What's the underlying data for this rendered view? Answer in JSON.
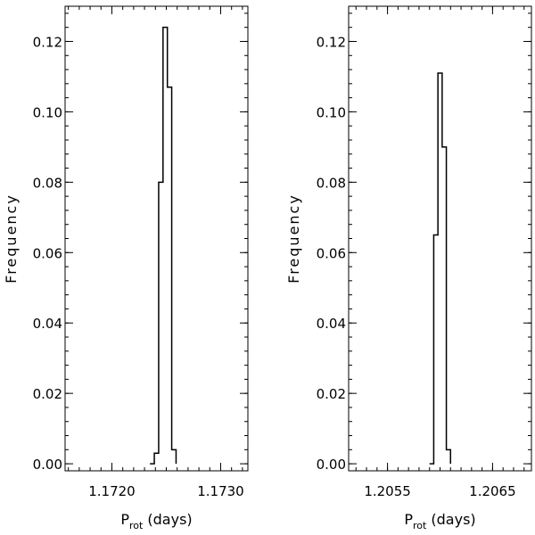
{
  "chart_data": [
    {
      "type": "line",
      "ylabel": "Frequency",
      "xlabel_main": "P",
      "xlabel_sub": "rot",
      "xlabel_rest": " (days)",
      "xlim": [
        1.17157,
        1.17325
      ],
      "ylim": [
        -0.002,
        0.13
      ],
      "xticks": [
        1.172,
        1.173
      ],
      "xtick_labels": [
        "1.1720",
        "1.1730"
      ],
      "yticks": [
        0.0,
        0.02,
        0.04,
        0.06,
        0.08,
        0.1,
        0.12
      ],
      "ytick_labels": [
        "0.00",
        "0.02",
        "0.04",
        "0.06",
        "0.08",
        "0.10",
        "0.12"
      ],
      "grid": false,
      "series": [
        {
          "x": [
            1.17237,
            1.17241,
            1.17245,
            1.17249,
            1.17253,
            1.17257
          ],
          "values": [
            0.0,
            0.003,
            0.08,
            0.124,
            0.107,
            0.004
          ]
        }
      ]
    },
    {
      "type": "line",
      "ylabel": "Frequency",
      "xlabel_main": "P",
      "xlabel_sub": "rot",
      "xlabel_rest": " (days)",
      "xlim": [
        1.20513,
        1.20687
      ],
      "ylim": [
        -0.002,
        0.13
      ],
      "xticks": [
        1.2055,
        1.2065
      ],
      "xtick_labels": [
        "1.2055",
        "1.2065"
      ],
      "yticks": [
        0.0,
        0.02,
        0.04,
        0.06,
        0.08,
        0.1,
        0.12
      ],
      "ytick_labels": [
        "0.00",
        "0.02",
        "0.04",
        "0.06",
        "0.08",
        "0.10",
        "0.12"
      ],
      "grid": false,
      "series": [
        {
          "x": [
            1.20592,
            1.20596,
            1.206,
            1.20604,
            1.20608
          ],
          "values": [
            0.0,
            0.065,
            0.111,
            0.09,
            0.004
          ]
        }
      ]
    }
  ]
}
